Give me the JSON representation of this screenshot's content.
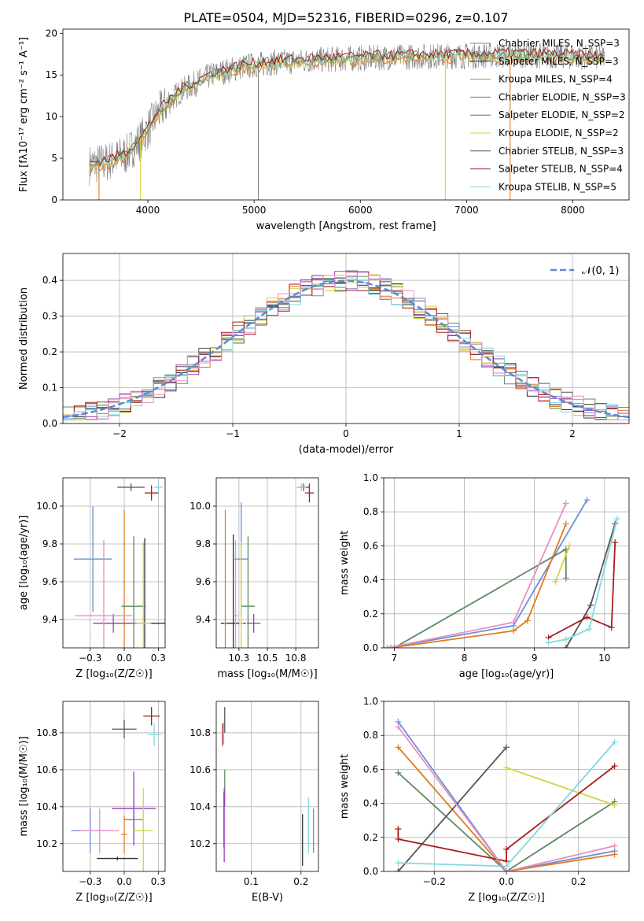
{
  "figure": {
    "title": "PLATE=0504, MJD=52316, FIBERID=0296, z=0.107"
  },
  "colors": {
    "model": [
      "#6a8fd6",
      "#2f2f2f",
      "#e07b1f",
      "#5e8a62",
      "#9b3dbd",
      "#d4d23e",
      "#555555",
      "#a61c1c",
      "#7fd9e0"
    ],
    "pink": "#e88fc4",
    "data": "#808080",
    "normal": "#5b8bd6",
    "grid": "#b0b0b0"
  },
  "chart_data": [
    {
      "id": "spectrum",
      "type": "line",
      "xlabel": "wavelength [Angstrom, rest frame]",
      "ylabel": "Flux [fλ10⁻¹⁷ erg cm⁻² s⁻¹ A⁻¹]",
      "xlim": [
        3200,
        8530
      ],
      "ylim": [
        0,
        20.5
      ],
      "xticks": [
        4000,
        5000,
        6000,
        7000,
        8000
      ],
      "yticks": [
        0,
        5,
        10,
        15,
        20
      ],
      "continuum": [
        [
          3450,
          4.2
        ],
        [
          3600,
          4.5
        ],
        [
          3800,
          5.5
        ],
        [
          3950,
          7.5
        ],
        [
          4100,
          10.5
        ],
        [
          4300,
          13.0
        ],
        [
          4600,
          15.0
        ],
        [
          4900,
          16.0
        ],
        [
          5200,
          16.5
        ],
        [
          5600,
          16.8
        ],
        [
          6000,
          17.0
        ],
        [
          6500,
          17.2
        ],
        [
          7000,
          17.3
        ],
        [
          7500,
          17.4
        ],
        [
          8000,
          17.2
        ],
        [
          8300,
          17.0
        ]
      ],
      "legend_position": "upper right",
      "legend": [
        "Chabrier MILES, N_SSP=3",
        "Salpeter MILES, N_SSP=3",
        "Kroupa MILES, N_SSP=4",
        "Chabrier ELODIE, N_SSP=3",
        "Salpeter ELODIE, N_SSP=2",
        "Kroupa ELODIE, N_SSP=2",
        "Chabrier STELIB, N_SSP=3",
        "Salpeter STELIB, N_SSP=4",
        "Kroupa STELIB, N_SSP=5"
      ]
    },
    {
      "id": "residuals",
      "type": "line",
      "xlabel": "(data-model)/error",
      "ylabel": "Normed distribution",
      "xlim": [
        -2.5,
        2.5
      ],
      "ylim": [
        0,
        0.475
      ],
      "xticks": [
        -2,
        -1,
        0,
        1,
        2
      ],
      "yticks": [
        0.0,
        0.1,
        0.2,
        0.3,
        0.4
      ],
      "legend": [
        "𝒩(0, 1)"
      ],
      "legend_position": "upper right"
    },
    {
      "id": "age_vs_Z",
      "type": "scatter",
      "xlabel": "Z [log₁₀(Z/Z☉)]",
      "ylabel": "age  [log₁₀(age/yr)]",
      "xlim": [
        -0.45,
        0.3
      ],
      "ylim": [
        9.25,
        10.15
      ],
      "xticks": [
        -0.25,
        0.0,
        0.25
      ],
      "yticks": [
        9.4,
        9.6,
        9.8,
        10.0
      ],
      "points": [
        {
          "x": -0.23,
          "y": 9.72,
          "xerr": 0.14,
          "yerr": 0.28
        },
        {
          "x": 0.15,
          "y": 9.38,
          "xerr": 0.24,
          "yerr": 0.45
        },
        {
          "x": 0.0,
          "y": 9.38,
          "xerr": 0.2,
          "yerr": 0.6
        },
        {
          "x": 0.07,
          "y": 9.47,
          "xerr": 0.09,
          "yerr": 0.37
        },
        {
          "x": -0.08,
          "y": 9.38,
          "xerr": 0.15,
          "yerr": 0.05
        },
        {
          "x": 0.14,
          "y": 9.38,
          "xerr": 0.05,
          "yerr": 0.43
        },
        {
          "x": 0.05,
          "y": 10.1,
          "xerr": 0.1,
          "yerr": 0.02
        },
        {
          "x": 0.2,
          "y": 10.07,
          "xerr": 0.05,
          "yerr": 0.04
        },
        {
          "x": 0.25,
          "y": 10.1,
          "xerr": 0.03,
          "yerr": 0.02
        },
        {
          "x": -0.15,
          "y": 9.42,
          "xerr": 0.21,
          "yerr": 0.4
        }
      ]
    },
    {
      "id": "age_vs_mass",
      "type": "scatter",
      "xlabel": "mass [log₁₀(M/M☉)]",
      "ylabel": "",
      "xlim": [
        10.05,
        10.95
      ],
      "ylim": [
        9.25,
        10.15
      ],
      "xticks": [
        10.25,
        10.5,
        10.75
      ],
      "yticks": [
        9.4,
        9.6,
        9.8,
        10.0
      ],
      "points": [
        {
          "x": 10.27,
          "y": 9.72,
          "xerr": 0.06,
          "yerr": 0.3
        },
        {
          "x": 10.2,
          "y": 9.38,
          "xerr": 0.11,
          "yerr": 0.47
        },
        {
          "x": 10.13,
          "y": 9.38,
          "xerr": 0.01,
          "yerr": 0.6
        },
        {
          "x": 10.33,
          "y": 9.47,
          "xerr": 0.06,
          "yerr": 0.37
        },
        {
          "x": 10.38,
          "y": 9.38,
          "xerr": 0.06,
          "yerr": 0.05
        },
        {
          "x": 10.27,
          "y": 9.38,
          "xerr": 0.02,
          "yerr": 0.43
        },
        {
          "x": 10.82,
          "y": 10.1,
          "xerr": 0.05,
          "yerr": 0.02
        },
        {
          "x": 10.87,
          "y": 10.07,
          "xerr": 0.04,
          "yerr": 0.05
        },
        {
          "x": 10.8,
          "y": 10.1,
          "xerr": 0.04,
          "yerr": 0.02
        },
        {
          "x": 10.22,
          "y": 9.42,
          "xerr": 0.02,
          "yerr": 0.4
        }
      ]
    },
    {
      "id": "weight_vs_age",
      "type": "line",
      "xlabel": "age  [log₁₀(age/yr)]",
      "ylabel": "mass weight",
      "xlim": [
        6.85,
        10.35
      ],
      "ylim": [
        0,
        1
      ],
      "xticks": [
        7,
        8,
        9,
        10
      ],
      "yticks": [
        0.0,
        0.2,
        0.4,
        0.6,
        0.8,
        1.0
      ],
      "series": [
        {
          "points": [
            [
              6.9,
              0.0
            ],
            [
              8.7,
              0.13
            ],
            [
              9.75,
              0.87
            ]
          ]
        },
        {
          "points": [
            [
              6.95,
              0.0
            ],
            [
              8.7,
              0.1
            ],
            [
              8.9,
              0.16
            ],
            [
              9.45,
              0.73
            ]
          ]
        },
        {
          "points": [
            [
              7.0,
              0.0
            ],
            [
              9.45,
              0.58
            ],
            [
              9.45,
              0.41
            ]
          ]
        },
        {
          "points": [
            [
              9.5,
              0.6
            ],
            [
              9.3,
              0.39
            ]
          ]
        },
        {
          "points": [
            [
              9.45,
              0.0
            ],
            [
              9.8,
              0.25
            ],
            [
              10.15,
              0.73
            ]
          ]
        },
        {
          "points": [
            [
              9.2,
              0.06
            ],
            [
              9.75,
              0.18
            ],
            [
              10.1,
              0.12
            ],
            [
              10.15,
              0.62
            ]
          ]
        },
        {
          "points": [
            [
              9.2,
              0.03
            ],
            [
              9.45,
              0.05
            ],
            [
              9.78,
              0.11
            ],
            [
              10.18,
              0.76
            ]
          ]
        },
        {
          "points": [
            [
              6.9,
              0.0
            ],
            [
              8.7,
              0.15
            ],
            [
              9.45,
              0.85
            ]
          ]
        }
      ]
    },
    {
      "id": "mass_vs_Z",
      "type": "scatter",
      "xlabel": "Z [log₁₀(Z/Z☉)]",
      "ylabel": "mass [log₁₀(M/M☉)]",
      "xlim": [
        -0.45,
        0.3
      ],
      "ylim": [
        10.05,
        10.97
      ],
      "xticks": [
        -0.25,
        0.0,
        0.25
      ],
      "yticks": [
        10.2,
        10.4,
        10.6,
        10.8
      ],
      "points": [
        {
          "x": -0.25,
          "y": 10.27,
          "xerr": 0.14,
          "yerr": 0.12
        },
        {
          "x": -0.05,
          "y": 10.12,
          "xerr": 0.15,
          "yerr": 0.01
        },
        {
          "x": 0.0,
          "y": 10.25,
          "xerr": 0.02,
          "yerr": 0.1
        },
        {
          "x": 0.07,
          "y": 10.33,
          "xerr": 0.07,
          "yerr": 0.1
        },
        {
          "x": 0.07,
          "y": 10.39,
          "xerr": 0.16,
          "yerr": 0.2
        },
        {
          "x": 0.14,
          "y": 10.27,
          "xerr": 0.07,
          "yerr": 0.23
        },
        {
          "x": 0.0,
          "y": 10.82,
          "xerr": 0.09,
          "yerr": 0.05
        },
        {
          "x": 0.2,
          "y": 10.89,
          "xerr": 0.06,
          "yerr": 0.05
        },
        {
          "x": 0.22,
          "y": 10.79,
          "xerr": 0.05,
          "yerr": 0.06
        },
        {
          "x": -0.18,
          "y": 10.27,
          "xerr": 0.14,
          "yerr": 0.12
        }
      ]
    },
    {
      "id": "mass_vs_ebv",
      "type": "scatter",
      "xlabel": "E(B-V)",
      "ylabel": "",
      "xlim": [
        0.03,
        0.235
      ],
      "ylim": [
        10.05,
        10.97
      ],
      "xticks": [
        0.1,
        0.2
      ],
      "yticks": [
        10.2,
        10.4,
        10.6,
        10.8
      ],
      "points": [
        {
          "x": 0.225,
          "y": 10.27,
          "xerr": 0.0,
          "yerr": 0.12
        },
        {
          "x": 0.203,
          "y": 10.22,
          "xerr": 0.0,
          "yerr": 0.14
        },
        {
          "x": 0.045,
          "y": 10.33,
          "xerr": 0.0,
          "yerr": 0.15
        },
        {
          "x": 0.047,
          "y": 10.5,
          "xerr": 0.0,
          "yerr": 0.1
        },
        {
          "x": 0.046,
          "y": 10.3,
          "xerr": 0.0,
          "yerr": 0.2
        },
        {
          "x": 0.045,
          "y": 10.8,
          "xerr": 0.0,
          "yerr": 0.06
        },
        {
          "x": 0.047,
          "y": 10.87,
          "xerr": 0.0,
          "yerr": 0.07
        },
        {
          "x": 0.043,
          "y": 10.79,
          "xerr": 0.0,
          "yerr": 0.06
        },
        {
          "x": 0.215,
          "y": 10.3,
          "xerr": 0.0,
          "yerr": 0.15
        }
      ]
    },
    {
      "id": "weight_vs_Z",
      "type": "line",
      "xlabel": "Z [log₁₀(Z/Z☉)]",
      "ylabel": "mass weight",
      "xlim": [
        -0.34,
        0.34
      ],
      "ylim": [
        0,
        1
      ],
      "xticks": [
        -0.2,
        0.0,
        0.2
      ],
      "yticks": [
        0.0,
        0.2,
        0.4,
        0.6,
        0.8,
        1.0
      ],
      "series": [
        {
          "points": [
            [
              -0.3,
              0.88
            ],
            [
              0.0,
              0.0
            ],
            [
              0.3,
              0.12
            ]
          ]
        },
        {
          "points": [
            [
              -0.3,
              0.73
            ],
            [
              0.0,
              0.0
            ],
            [
              0.3,
              0.1
            ]
          ]
        },
        {
          "points": [
            [
              -0.3,
              0.58
            ],
            [
              0.0,
              0.0
            ],
            [
              0.3,
              0.41
            ]
          ]
        },
        {
          "points": [
            [
              0.0,
              0.61
            ],
            [
              0.3,
              0.39
            ]
          ]
        },
        {
          "points": [
            [
              -0.3,
              0.0
            ],
            [
              0.0,
              0.73
            ]
          ]
        },
        {
          "points": [
            [
              -0.3,
              0.25
            ],
            [
              -0.3,
              0.19
            ],
            [
              0.0,
              0.06
            ],
            [
              0.0,
              0.13
            ],
            [
              0.3,
              0.62
            ]
          ]
        },
        {
          "points": [
            [
              -0.3,
              0.05
            ],
            [
              0.0,
              0.03
            ],
            [
              0.3,
              0.76
            ]
          ]
        },
        {
          "points": [
            [
              -0.3,
              0.85
            ],
            [
              0.0,
              0.0
            ],
            [
              0.3,
              0.15
            ]
          ]
        }
      ]
    }
  ]
}
